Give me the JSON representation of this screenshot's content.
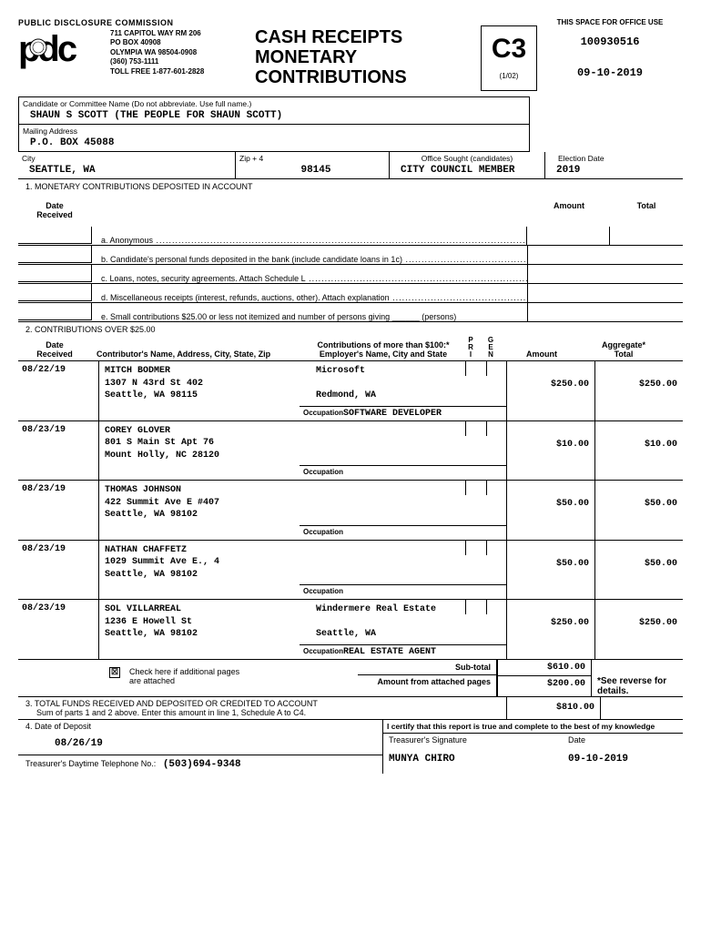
{
  "header": {
    "commission": "PUBLIC    DISCLOSURE COMMISSION",
    "addr1": "711 CAPITOL WAY RM 206",
    "addr2": "PO BOX 40908",
    "addr3": "OLYMPIA WA 98504-0908",
    "phone1": "(360) 753-1111",
    "phone2": "TOLL FREE 1-877-601-2828",
    "title1": "CASH RECEIPTS",
    "title2": "MONETARY",
    "title3": "CONTRIBUTIONS",
    "form_code": "C3",
    "form_rev": "(1/02)",
    "office_use_label": "THIS SPACE FOR OFFICE USE",
    "office_id": "100930516",
    "office_date": "09-10-2019"
  },
  "candidate": {
    "name_label": "Candidate or Committee Name (Do not abbreviate.  Use full name.)",
    "name": "SHAUN S SCOTT (THE PEOPLE FOR SHAUN SCOTT)",
    "mail_label": "Mailing Address",
    "mail": "P.O. BOX 45088",
    "city_label": "City",
    "city": "SEATTLE, WA",
    "zip_label": "Zip + 4",
    "zip": "98145",
    "office_label": "Office Sought (candidates)",
    "office": "CITY COUNCIL MEMBER",
    "election_label": "Election Date",
    "election": "2019"
  },
  "section1": {
    "title": "1. MONETARY CONTRIBUTIONS DEPOSITED IN ACCOUNT",
    "date_h": "Date Received",
    "amount_h": "Amount",
    "total_h": "Total",
    "a": "a. Anonymous",
    "b": "b. Candidate's personal funds deposited in the bank (include candidate loans in 1c)",
    "c": "c. Loans, notes, security agreements.  Attach Schedule L",
    "d": "d. Miscellaneous receipts (interest, refunds, auctions, other).  Attach explanation",
    "e": "e. Small contributions $25.00 or less not itemized and number of persons giving ______ (persons)"
  },
  "section2": {
    "title": "2. CONTRIBUTIONS OVER $25.00",
    "date_h": "Date Received",
    "contrib_h": "Contributor's Name, Address, City, State, Zip",
    "emp_h1": "Contributions of more than $100:",
    "emp_h2": "Employer's Name, City and State",
    "p": "P",
    "r": "R",
    "i": "I",
    "g": "G",
    "e": "E",
    "n": "N",
    "amount_h": "Amount",
    "agg_h": "Aggregate",
    "agg_h2": "Total",
    "occ_label": "Occupation"
  },
  "contributions": [
    {
      "date": "08/22/19",
      "name": "MITCH BODMER",
      "addr1": "1307 N 43rd St 402",
      "addr2": "Seattle, WA 98115",
      "employer": "Microsoft",
      "emp_city": "Redmond, WA",
      "occupation": "SOFTWARE DEVELOPER",
      "amount": "$250.00",
      "aggregate": "$250.00"
    },
    {
      "date": "08/23/19",
      "name": "COREY GLOVER",
      "addr1": "801 S Main St Apt 76",
      "addr2": "Mount Holly, NC 28120",
      "employer": "",
      "emp_city": "",
      "occupation": "",
      "amount": "$10.00",
      "aggregate": "$10.00"
    },
    {
      "date": "08/23/19",
      "name": "THOMAS JOHNSON",
      "addr1": "422 Summit Ave E #407",
      "addr2": "Seattle, WA 98102",
      "employer": "",
      "emp_city": "",
      "occupation": "",
      "amount": "$50.00",
      "aggregate": "$50.00"
    },
    {
      "date": "08/23/19",
      "name": "NATHAN CHAFFETZ",
      "addr1": "1029 Summit Ave E., 4",
      "addr2": "Seattle, WA 98102",
      "employer": "",
      "emp_city": "",
      "occupation": "",
      "amount": "$50.00",
      "aggregate": "$50.00"
    },
    {
      "date": "08/23/19",
      "name": "SOL VILLARREAL",
      "addr1": "1236 E Howell St",
      "addr2": "Seattle, WA 98102",
      "employer": "Windermere Real Estate",
      "emp_city": "Seattle, WA",
      "occupation": "REAL ESTATE AGENT",
      "amount": "$250.00",
      "aggregate": "$250.00"
    }
  ],
  "subtotals": {
    "check_label": "Check here if additional pages are attached",
    "checked": "☒",
    "subtotal_label": "Sub-total",
    "subtotal": "$610.00",
    "attached_label": "Amount from attached pages",
    "attached": "$200.00",
    "see_reverse": "*See reverse for details."
  },
  "section3": {
    "title": "3. TOTAL FUNDS RECEIVED AND DEPOSITED OR CREDITED TO ACCOUNT",
    "sub": "Sum of parts 1 and 2 above.  Enter this amount in line 1, Schedule A to C4.",
    "total": "$810.00"
  },
  "section4": {
    "title": "4. Date of Deposit",
    "date": "08/26/19",
    "phone_label": "Treasurer's Daytime Telephone No.:",
    "phone": "(503)694-9348",
    "cert": "I certify that this report is true and complete to the best of my knowledge",
    "sig_label": "Treasurer's Signature",
    "sig": "MUNYA CHIRO",
    "date_label": "Date",
    "sig_date": "09-10-2019"
  }
}
